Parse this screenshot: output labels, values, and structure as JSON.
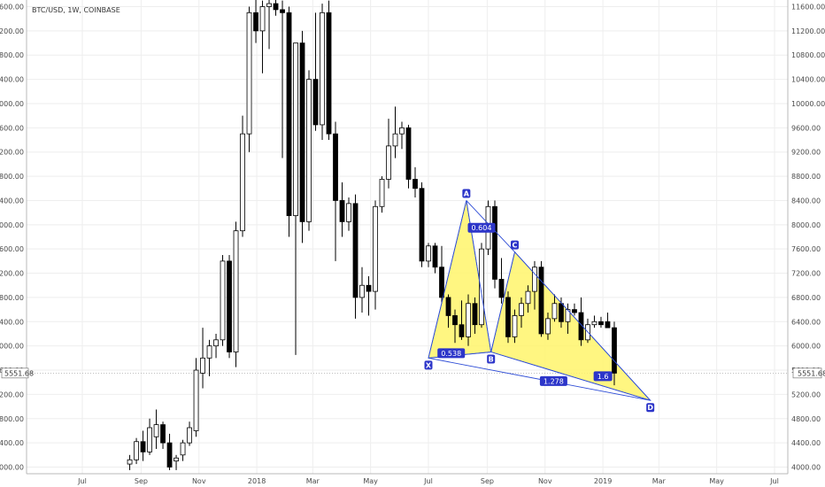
{
  "colors": {
    "candle_up_fill": "#ffffff",
    "candle_down_fill": "#000000",
    "candle_stroke": "#000000",
    "grid": "#eeeeee",
    "pattern_fill": "#fff56b",
    "pattern_line": "#2c4bd6",
    "label_bg": "#2c35c9",
    "axis_text": "#4a4a4a"
  },
  "chart_data": {
    "type": "candlestick",
    "title": "BTC/USD, 1W, COINBASE",
    "y_ticks": [
      "4000.00",
      "4400.00",
      "4800.00",
      "5200.00",
      "5600.00",
      "6000.00",
      "6400.00",
      "6800.00",
      "7200.00",
      "7600.00",
      "8000.00",
      "8400.00",
      "8800.00",
      "9200.00",
      "9600.00",
      "10000.00",
      "10400.00",
      "10800.00",
      "11200.00",
      "11600.00"
    ],
    "y_tick_values": [
      4000,
      4400,
      4800,
      5200,
      5600,
      6000,
      6400,
      6800,
      7200,
      7600,
      8000,
      8400,
      8800,
      9200,
      9600,
      10000,
      10400,
      10800,
      11200,
      11600
    ],
    "ylim": [
      3950,
      11750
    ],
    "x_ticks": [
      {
        "label": "Jul",
        "date": "2017-07-01"
      },
      {
        "label": "Sep",
        "date": "2017-09-01"
      },
      {
        "label": "Nov",
        "date": "2017-11-01"
      },
      {
        "label": "2018",
        "date": "2018-01-01"
      },
      {
        "label": "Mar",
        "date": "2018-03-01"
      },
      {
        "label": "May",
        "date": "2018-05-01"
      },
      {
        "label": "Jul",
        "date": "2018-07-01"
      },
      {
        "label": "Sep",
        "date": "2018-09-01"
      },
      {
        "label": "Nov",
        "date": "2018-11-01"
      },
      {
        "label": "2019",
        "date": "2019-01-01"
      },
      {
        "label": "Mar",
        "date": "2019-03-01"
      },
      {
        "label": "May",
        "date": "2019-05-01"
      },
      {
        "label": "Jul",
        "date": "2019-07-01"
      }
    ],
    "current_price_label": "5551.68",
    "current_price": 5551.68,
    "candles": [
      {
        "date": "2017-08-20",
        "o": 4050,
        "h": 4200,
        "l": 3950,
        "c": 4120
      },
      {
        "date": "2017-08-27",
        "o": 4120,
        "h": 4480,
        "l": 4050,
        "c": 4420
      },
      {
        "date": "2017-09-03",
        "o": 4420,
        "h": 4600,
        "l": 4100,
        "c": 4250
      },
      {
        "date": "2017-09-10",
        "o": 4250,
        "h": 4800,
        "l": 4200,
        "c": 4650
      },
      {
        "date": "2017-09-17",
        "o": 4500,
        "h": 4950,
        "l": 4300,
        "c": 4700
      },
      {
        "date": "2017-09-24",
        "o": 4700,
        "h": 4750,
        "l": 4300,
        "c": 4400
      },
      {
        "date": "2017-10-01",
        "o": 4400,
        "h": 4550,
        "l": 3950,
        "c": 4000
      },
      {
        "date": "2017-10-08",
        "o": 4100,
        "h": 4200,
        "l": 3950,
        "c": 4150
      },
      {
        "date": "2017-10-15",
        "o": 4200,
        "h": 4450,
        "l": 4100,
        "c": 4400
      },
      {
        "date": "2017-10-22",
        "o": 4400,
        "h": 4750,
        "l": 4350,
        "c": 4650
      },
      {
        "date": "2017-10-29",
        "o": 4600,
        "h": 5800,
        "l": 4500,
        "c": 5600
      },
      {
        "date": "2017-11-05",
        "o": 5550,
        "h": 6300,
        "l": 5300,
        "c": 5800
      },
      {
        "date": "2017-11-12",
        "o": 5800,
        "h": 6100,
        "l": 5500,
        "c": 6000
      },
      {
        "date": "2017-11-19",
        "o": 6000,
        "h": 6200,
        "l": 5800,
        "c": 6100
      },
      {
        "date": "2017-11-26",
        "o": 6100,
        "h": 7500,
        "l": 6000,
        "c": 7400
      },
      {
        "date": "2017-12-03",
        "o": 7400,
        "h": 7500,
        "l": 5800,
        "c": 5900
      },
      {
        "date": "2017-12-10",
        "o": 5900,
        "h": 8050,
        "l": 5650,
        "c": 7900
      },
      {
        "date": "2017-12-17",
        "o": 7900,
        "h": 9800,
        "l": 7800,
        "c": 9500
      },
      {
        "date": "2017-12-24",
        "o": 9500,
        "h": 11600,
        "l": 9200,
        "c": 11500
      },
      {
        "date": "2017-12-31",
        "o": 11500,
        "h": 11750,
        "l": 11000,
        "c": 11200
      },
      {
        "date": "2018-01-07",
        "o": 11200,
        "h": 11700,
        "l": 10500,
        "c": 11600
      },
      {
        "date": "2018-01-14",
        "o": 11600,
        "h": 11750,
        "l": 10900,
        "c": 11650
      },
      {
        "date": "2018-01-21",
        "o": 11650,
        "h": 11750,
        "l": 11450,
        "c": 11550
      },
      {
        "date": "2018-01-28",
        "o": 11550,
        "h": 11700,
        "l": 9100,
        "c": 11500
      },
      {
        "date": "2018-02-04",
        "o": 11500,
        "h": 11600,
        "l": 7800,
        "c": 8150
      },
      {
        "date": "2018-02-11",
        "o": 8150,
        "h": 11000,
        "l": 5850,
        "c": 11000
      },
      {
        "date": "2018-02-18",
        "o": 11000,
        "h": 11200,
        "l": 7700,
        "c": 8050
      },
      {
        "date": "2018-02-25",
        "o": 8050,
        "h": 10550,
        "l": 7900,
        "c": 10400
      },
      {
        "date": "2018-03-04",
        "o": 10400,
        "h": 11500,
        "l": 9550,
        "c": 9650
      },
      {
        "date": "2018-03-11",
        "o": 9650,
        "h": 11650,
        "l": 9400,
        "c": 11500
      },
      {
        "date": "2018-03-18",
        "o": 11500,
        "h": 11700,
        "l": 9400,
        "c": 9500
      },
      {
        "date": "2018-03-25",
        "o": 9500,
        "h": 9700,
        "l": 7400,
        "c": 8400
      },
      {
        "date": "2018-04-01",
        "o": 8400,
        "h": 8700,
        "l": 7800,
        "c": 8050
      },
      {
        "date": "2018-04-08",
        "o": 8050,
        "h": 8450,
        "l": 7900,
        "c": 8350
      },
      {
        "date": "2018-04-15",
        "o": 8350,
        "h": 8500,
        "l": 6450,
        "c": 6800
      },
      {
        "date": "2018-04-22",
        "o": 6800,
        "h": 7300,
        "l": 6550,
        "c": 7000
      },
      {
        "date": "2018-04-29",
        "o": 7000,
        "h": 7150,
        "l": 6500,
        "c": 6900
      },
      {
        "date": "2018-05-06",
        "o": 6900,
        "h": 8400,
        "l": 6600,
        "c": 8300
      },
      {
        "date": "2018-05-13",
        "o": 8300,
        "h": 8800,
        "l": 8200,
        "c": 8750
      },
      {
        "date": "2018-05-20",
        "o": 8750,
        "h": 9750,
        "l": 8600,
        "c": 9300
      },
      {
        "date": "2018-05-27",
        "o": 9300,
        "h": 9950,
        "l": 9100,
        "c": 9500
      },
      {
        "date": "2018-06-03",
        "o": 9500,
        "h": 9700,
        "l": 9250,
        "c": 9600
      },
      {
        "date": "2018-06-10",
        "o": 9600,
        "h": 9650,
        "l": 8600,
        "c": 8750
      },
      {
        "date": "2018-06-17",
        "o": 8750,
        "h": 8950,
        "l": 8450,
        "c": 8600
      },
      {
        "date": "2018-06-24",
        "o": 8600,
        "h": 8700,
        "l": 7300,
        "c": 7400
      },
      {
        "date": "2018-07-01",
        "o": 7400,
        "h": 7700,
        "l": 7300,
        "c": 7650
      },
      {
        "date": "2018-07-08",
        "o": 7650,
        "h": 7700,
        "l": 7200,
        "c": 7300
      },
      {
        "date": "2018-07-15",
        "o": 7300,
        "h": 7650,
        "l": 6700,
        "c": 6800
      },
      {
        "date": "2018-07-22",
        "o": 6800,
        "h": 6850,
        "l": 6300,
        "c": 6500
      },
      {
        "date": "2018-07-29",
        "o": 6500,
        "h": 6600,
        "l": 6050,
        "c": 6350
      },
      {
        "date": "2018-08-05",
        "o": 6350,
        "h": 6750,
        "l": 6100,
        "c": 6150
      },
      {
        "date": "2018-08-12",
        "o": 6150,
        "h": 6850,
        "l": 6000,
        "c": 6700
      },
      {
        "date": "2018-08-19",
        "o": 6700,
        "h": 6800,
        "l": 6200,
        "c": 6350
      },
      {
        "date": "2018-08-26",
        "o": 6350,
        "h": 7700,
        "l": 6300,
        "c": 7600
      },
      {
        "date": "2018-09-02",
        "o": 7600,
        "h": 8400,
        "l": 7500,
        "c": 8300
      },
      {
        "date": "2018-09-09",
        "o": 8300,
        "h": 8400,
        "l": 6950,
        "c": 7100
      },
      {
        "date": "2018-09-16",
        "o": 7100,
        "h": 7450,
        "l": 6700,
        "c": 6800
      },
      {
        "date": "2018-09-23",
        "o": 6800,
        "h": 6900,
        "l": 6050,
        "c": 6150
      },
      {
        "date": "2018-09-30",
        "o": 6150,
        "h": 6600,
        "l": 6050,
        "c": 6500
      },
      {
        "date": "2018-10-07",
        "o": 6500,
        "h": 6800,
        "l": 6300,
        "c": 6700
      },
      {
        "date": "2018-10-14",
        "o": 6700,
        "h": 7000,
        "l": 6550,
        "c": 6900
      },
      {
        "date": "2018-10-21",
        "o": 6900,
        "h": 7400,
        "l": 6600,
        "c": 7300
      },
      {
        "date": "2018-10-28",
        "o": 7300,
        "h": 7400,
        "l": 6150,
        "c": 6200
      },
      {
        "date": "2018-11-04",
        "o": 6200,
        "h": 6550,
        "l": 6100,
        "c": 6450
      },
      {
        "date": "2018-11-11",
        "o": 6450,
        "h": 6850,
        "l": 6400,
        "c": 6700
      },
      {
        "date": "2018-11-18",
        "o": 6700,
        "h": 6800,
        "l": 6300,
        "c": 6400
      },
      {
        "date": "2018-11-25",
        "o": 6400,
        "h": 6700,
        "l": 6200,
        "c": 6600
      },
      {
        "date": "2018-12-02",
        "o": 6600,
        "h": 6700,
        "l": 6500,
        "c": 6550
      },
      {
        "date": "2018-12-09",
        "o": 6550,
        "h": 6800,
        "l": 6000,
        "c": 6100
      },
      {
        "date": "2018-12-16",
        "o": 6100,
        "h": 6450,
        "l": 6050,
        "c": 6350
      },
      {
        "date": "2018-12-23",
        "o": 6350,
        "h": 6500,
        "l": 6300,
        "c": 6400
      },
      {
        "date": "2018-12-30",
        "o": 6400,
        "h": 6480,
        "l": 6300,
        "c": 6350
      },
      {
        "date": "2019-01-06",
        "o": 6400,
        "h": 6550,
        "l": 6300,
        "c": 6300
      },
      {
        "date": "2019-01-13",
        "o": 6300,
        "h": 6400,
        "l": 5350,
        "c": 5550
      }
    ],
    "pattern": {
      "points": [
        {
          "label": "X",
          "date": "2018-07-01",
          "price": 5800
        },
        {
          "label": "A",
          "date": "2018-08-10",
          "price": 8400
        },
        {
          "label": "B",
          "date": "2018-09-05",
          "price": 5900
        },
        {
          "label": "C",
          "date": "2018-09-30",
          "price": 7550
        },
        {
          "label": "D",
          "date": "2019-02-20",
          "price": 5100
        }
      ],
      "ratios": [
        {
          "label": "0.604",
          "date": "2018-08-26",
          "price": 7950
        },
        {
          "label": "0.538",
          "date": "2018-07-25",
          "price": 5880
        },
        {
          "label": "1.6",
          "date": "2019-01-01",
          "price": 5500
        },
        {
          "label": "1.278",
          "date": "2018-11-10",
          "price": 5420
        }
      ]
    }
  }
}
